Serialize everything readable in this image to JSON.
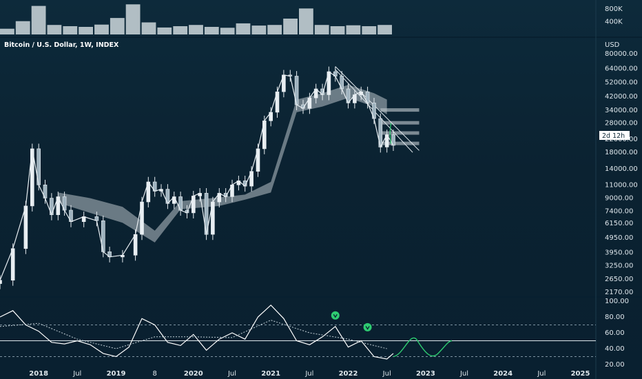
{
  "header": {
    "title": "Bitcoin / U.S. Dollar, 1W, INDEX",
    "currency": "USD",
    "countdown": "2d 12h"
  },
  "colors": {
    "background": "#0b2534",
    "candle": "#e8eef2",
    "cloud": "#b9c2c8",
    "accent_green": "#2ecc71",
    "volume_bar": "#cfd8dd",
    "rsi_line": "#ffffff"
  },
  "chart_data": [
    {
      "type": "bar",
      "name": "volume",
      "yticks": [
        "800K",
        "400K"
      ],
      "ylim": [
        0,
        1000000
      ],
      "x_start": "2017-07",
      "x_end": "2022-08",
      "series": [
        {
          "name": "",
          "values": [
            180000,
            420000,
            900000,
            300000,
            260000,
            240000,
            310000,
            520000,
            950000,
            380000,
            220000,
            260000,
            300000,
            240000,
            210000,
            350000,
            280000,
            300000,
            500000,
            820000,
            300000,
            260000,
            290000,
            260000,
            300000
          ]
        }
      ]
    },
    {
      "type": "line",
      "name": "price",
      "title": "Bitcoin / U.S. Dollar, 1W, INDEX",
      "ylabel": "USD",
      "scale": "log",
      "ylim": [
        2170,
        80000
      ],
      "yticks": [
        "80000.00",
        "64000.00",
        "52000.00",
        "42000.00",
        "34000.00",
        "28000.00",
        "22000.00",
        "18000.00",
        "14000.00",
        "11000.00",
        "9000.00",
        "7400.00",
        "6150.00",
        "4950.00",
        "3950.00",
        "3250.00",
        "2650.00",
        "2170.00"
      ],
      "xticks": [
        "2018",
        "Jul",
        "2019",
        "8",
        "2020",
        "Jul",
        "2021",
        "Jul",
        "2022",
        "Jul",
        "2023",
        "Jul",
        "2024",
        "Jul",
        "2025"
      ],
      "series": [
        {
          "name": "close",
          "x": [
            "2017-07",
            "2017-09",
            "2017-11",
            "2017-12",
            "2018-01",
            "2018-02",
            "2018-03",
            "2018-04",
            "2018-05",
            "2018-06",
            "2018-08",
            "2018-10",
            "2018-11",
            "2018-12",
            "2019-02",
            "2019-04",
            "2019-05",
            "2019-06",
            "2019-07",
            "2019-08",
            "2019-09",
            "2019-10",
            "2019-11",
            "2019-12",
            "2020-01",
            "2020-02",
            "2020-03",
            "2020-04",
            "2020-05",
            "2020-06",
            "2020-07",
            "2020-08",
            "2020-09",
            "2020-10",
            "2020-11",
            "2020-12",
            "2021-01",
            "2021-02",
            "2021-03",
            "2021-04",
            "2021-05",
            "2021-06",
            "2021-07",
            "2021-08",
            "2021-09",
            "2021-10",
            "2021-11",
            "2021-12",
            "2022-01",
            "2022-02",
            "2022-03",
            "2022-04",
            "2022-05",
            "2022-06",
            "2022-07",
            "2022-08"
          ],
          "values": [
            2600,
            4200,
            8000,
            19000,
            11000,
            9000,
            7000,
            9200,
            7500,
            6300,
            6800,
            6400,
            4000,
            3700,
            3800,
            5200,
            8500,
            11500,
            10000,
            10300,
            8300,
            9200,
            7500,
            7200,
            9300,
            9700,
            5200,
            8500,
            9700,
            9200,
            11000,
            11700,
            10800,
            13500,
            19000,
            29000,
            33000,
            45000,
            58000,
            57000,
            37000,
            35000,
            41000,
            47000,
            43000,
            61000,
            57000,
            47000,
            38000,
            43000,
            45000,
            38000,
            30000,
            19500,
            23500,
            20000
          ]
        }
      ],
      "cloud": {
        "x": [
          "2018-04",
          "2018-09",
          "2019-02",
          "2019-07",
          "2019-11",
          "2020-05",
          "2020-09",
          "2021-01",
          "2021-05",
          "2021-09",
          "2022-01",
          "2022-05",
          "2022-07"
        ],
        "top": [
          9800,
          9000,
          7900,
          5500,
          8600,
          9100,
          9500,
          11500,
          40000,
          44000,
          50000,
          44000,
          40000
        ],
        "bottom": [
          8400,
          7200,
          6200,
          4600,
          7600,
          8000,
          8800,
          9800,
          33000,
          36000,
          41000,
          36000,
          32000
        ]
      },
      "zones": [
        {
          "y": 34000
        },
        {
          "y": 28000
        },
        {
          "y": 24000
        },
        {
          "y": 20500
        }
      ],
      "trendlines": [
        [
          "2021-11",
          66000,
          "2022-12",
          18500
        ],
        [
          "2021-11",
          63000,
          "2022-11",
          18000
        ]
      ]
    },
    {
      "type": "line",
      "name": "RSI",
      "ylim": [
        20,
        100
      ],
      "yticks": [
        "100.00",
        "80.00",
        "60.00",
        "40.00",
        "20.00"
      ],
      "levels": [
        70,
        30
      ],
      "hline": 50,
      "series": [
        {
          "name": "rsi",
          "x": [
            "2017-07",
            "2017-09",
            "2017-11",
            "2018-01",
            "2018-03",
            "2018-05",
            "2018-07",
            "2018-09",
            "2018-11",
            "2019-01",
            "2019-03",
            "2019-05",
            "2019-07",
            "2019-09",
            "2019-11",
            "2020-01",
            "2020-03",
            "2020-05",
            "2020-07",
            "2020-09",
            "2020-11",
            "2021-01",
            "2021-03",
            "2021-05",
            "2021-07",
            "2021-09",
            "2021-11",
            "2022-01",
            "2022-03",
            "2022-05",
            "2022-07",
            "2022-08"
          ],
          "values": [
            80,
            88,
            70,
            62,
            48,
            46,
            50,
            45,
            34,
            30,
            42,
            78,
            70,
            48,
            44,
            58,
            38,
            52,
            60,
            52,
            80,
            95,
            78,
            50,
            45,
            55,
            68,
            42,
            50,
            30,
            27,
            34
          ]
        },
        {
          "name": "rsi_ma",
          "x": [
            "2017-07",
            "2018-01",
            "2018-07",
            "2019-01",
            "2019-07",
            "2020-01",
            "2020-07",
            "2021-01",
            "2021-07",
            "2022-01",
            "2022-07"
          ],
          "values": [
            68,
            72,
            52,
            40,
            55,
            55,
            54,
            76,
            60,
            52,
            40
          ]
        }
      ]
    }
  ]
}
